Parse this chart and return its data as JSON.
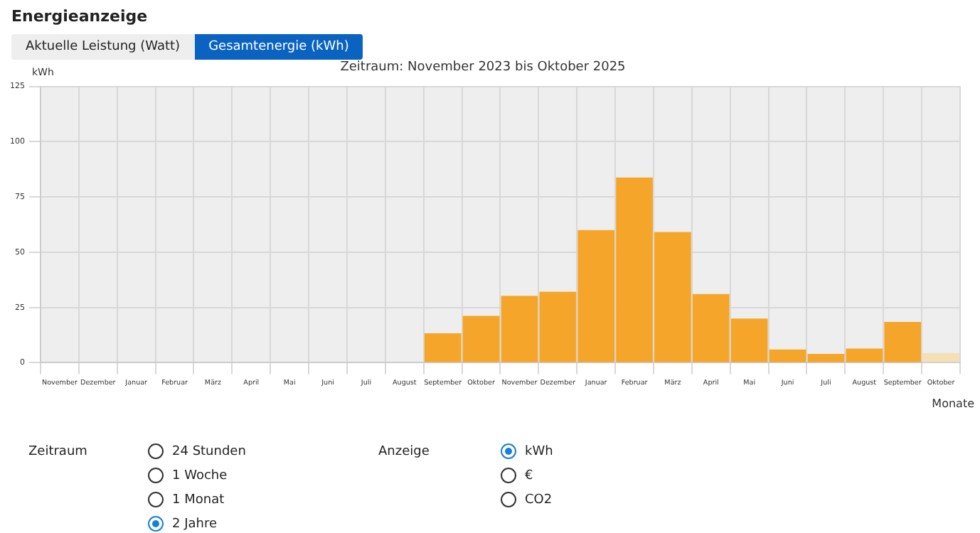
{
  "chart_data": {
    "type": "bar",
    "title": "Energieanzeige",
    "subtitle": "Zeitraum: November 2023 bis Oktober 2025",
    "ylabel": "kWh",
    "xlabel": "Monate",
    "categories": [
      "November",
      "Dezember",
      "Januar",
      "Februar",
      "März",
      "April",
      "Mai",
      "Juni",
      "Juli",
      "August",
      "September",
      "Oktober",
      "November",
      "Dezember",
      "Januar",
      "Februar",
      "März",
      "April",
      "Mai",
      "Juni",
      "Juli",
      "August",
      "September",
      "Oktober"
    ],
    "values": [
      0,
      0,
      0,
      0,
      0,
      0,
      0,
      0,
      0,
      0,
      13.3,
      21.2,
      30.3,
      32.1,
      60,
      83.8,
      59.1,
      31.1,
      20,
      6,
      4,
      6.4,
      18.5,
      4.4
    ],
    "colors": [
      "#f5a62a",
      "#f5a62a",
      "#f5a62a",
      "#f5a62a",
      "#f5a62a",
      "#f5a62a",
      "#f5a62a",
      "#f5a62a",
      "#f5a62a",
      "#f5a62a",
      "#f5a62a",
      "#f5a62a",
      "#f5a62a",
      "#f5a62a",
      "#f5a62a",
      "#f5a62a",
      "#f5a62a",
      "#f5a62a",
      "#f5a62a",
      "#f5a62a",
      "#f5a62a",
      "#f5a62a",
      "#f5a62a",
      "#f5dfb5"
    ],
    "ylim": [
      0,
      125
    ],
    "yticks": [
      0,
      25,
      50,
      75,
      100,
      125
    ],
    "grid": true,
    "legend": false,
    "annotations": [
      "Aktuelle Leistung (Watt)",
      "Gesamtenergie (kWh)",
      "Zeitraum",
      "24 Stunden",
      "1 Woche",
      "1 Monat",
      "2 Jahre",
      "Anzeige",
      "kWh",
      "€",
      "CO2"
    ]
  }
}
